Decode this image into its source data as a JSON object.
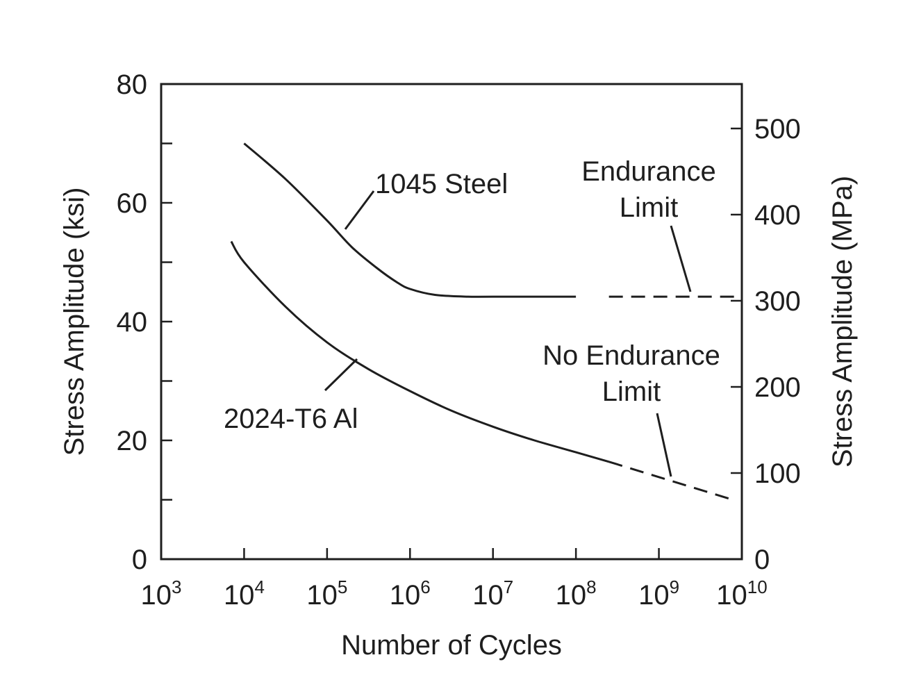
{
  "chart_data": {
    "type": "line",
    "title": "",
    "xlabel": "Number of Cycles",
    "ylabel": "Stress Amplitude (ksi)",
    "ylabel_right": "Stress Amplitude (MPa)",
    "x_scale": "log",
    "xlim": [
      1000,
      10000000000
    ],
    "ylim": [
      0,
      80
    ],
    "ylim_right_mpa": [
      0,
      551.6
    ],
    "x_ticks": [
      {
        "base": "10",
        "exp": "3",
        "value": 1000
      },
      {
        "base": "10",
        "exp": "4",
        "value": 10000
      },
      {
        "base": "10",
        "exp": "5",
        "value": 100000
      },
      {
        "base": "10",
        "exp": "6",
        "value": 1000000
      },
      {
        "base": "10",
        "exp": "7",
        "value": 10000000
      },
      {
        "base": "10",
        "exp": "8",
        "value": 100000000
      },
      {
        "base": "10",
        "exp": "9",
        "value": 1000000000
      },
      {
        "base": "10",
        "exp": "10",
        "value": 10000000000
      }
    ],
    "y_ticks_labeled": [
      {
        "label": "0",
        "value": 0
      },
      {
        "label": "20",
        "value": 20
      },
      {
        "label": "40",
        "value": 40
      },
      {
        "label": "60",
        "value": 60
      },
      {
        "label": "80",
        "value": 80
      }
    ],
    "y_ticks_minor": [
      10,
      30,
      50,
      70
    ],
    "y_right_ticks": [
      {
        "label": "0",
        "value": 0
      },
      {
        "label": "100",
        "value": 100
      },
      {
        "label": "200",
        "value": 200
      },
      {
        "label": "300",
        "value": 300
      },
      {
        "label": "400",
        "value": 400
      },
      {
        "label": "500",
        "value": 500
      }
    ],
    "grid": false,
    "series": [
      {
        "name": "1045 Steel",
        "x": [
          10000,
          31600,
          100000,
          200000,
          400000,
          700000,
          1000000,
          2000000,
          5000000,
          10000000,
          100000000
        ],
        "y": [
          70,
          64,
          57,
          52.5,
          49,
          46.6,
          45.5,
          44.5,
          44.2,
          44.2,
          44.2
        ],
        "dashed_extension": {
          "x": [
            250000000,
            10000000000
          ],
          "y": [
            44.2,
            44.2
          ]
        }
      },
      {
        "name": "2024-T6 Al",
        "x": [
          7000,
          10000,
          31600,
          100000,
          316000,
          1000000,
          3160000,
          10000000,
          31600000,
          100000000,
          250000000
        ],
        "y": [
          53.5,
          50,
          42.5,
          36.5,
          32,
          28.3,
          25,
          22.3,
          20,
          18,
          16.4
        ],
        "dashed_extension": {
          "x": [
            250000000,
            7800000000
          ],
          "y": [
            16.4,
            10
          ]
        }
      }
    ],
    "annotations": [
      {
        "lines": [
          "1045 Steel"
        ],
        "points_to": "1045 Steel"
      },
      {
        "lines": [
          "2024-T6 Al"
        ],
        "points_to": "2024-T6 Al"
      },
      {
        "lines": [
          "Endurance",
          "Limit"
        ],
        "points_to": "1045 Steel dashed extension"
      },
      {
        "lines": [
          "No Endurance",
          "Limit"
        ],
        "points_to": "2024-T6 Al dashed extension"
      }
    ]
  }
}
